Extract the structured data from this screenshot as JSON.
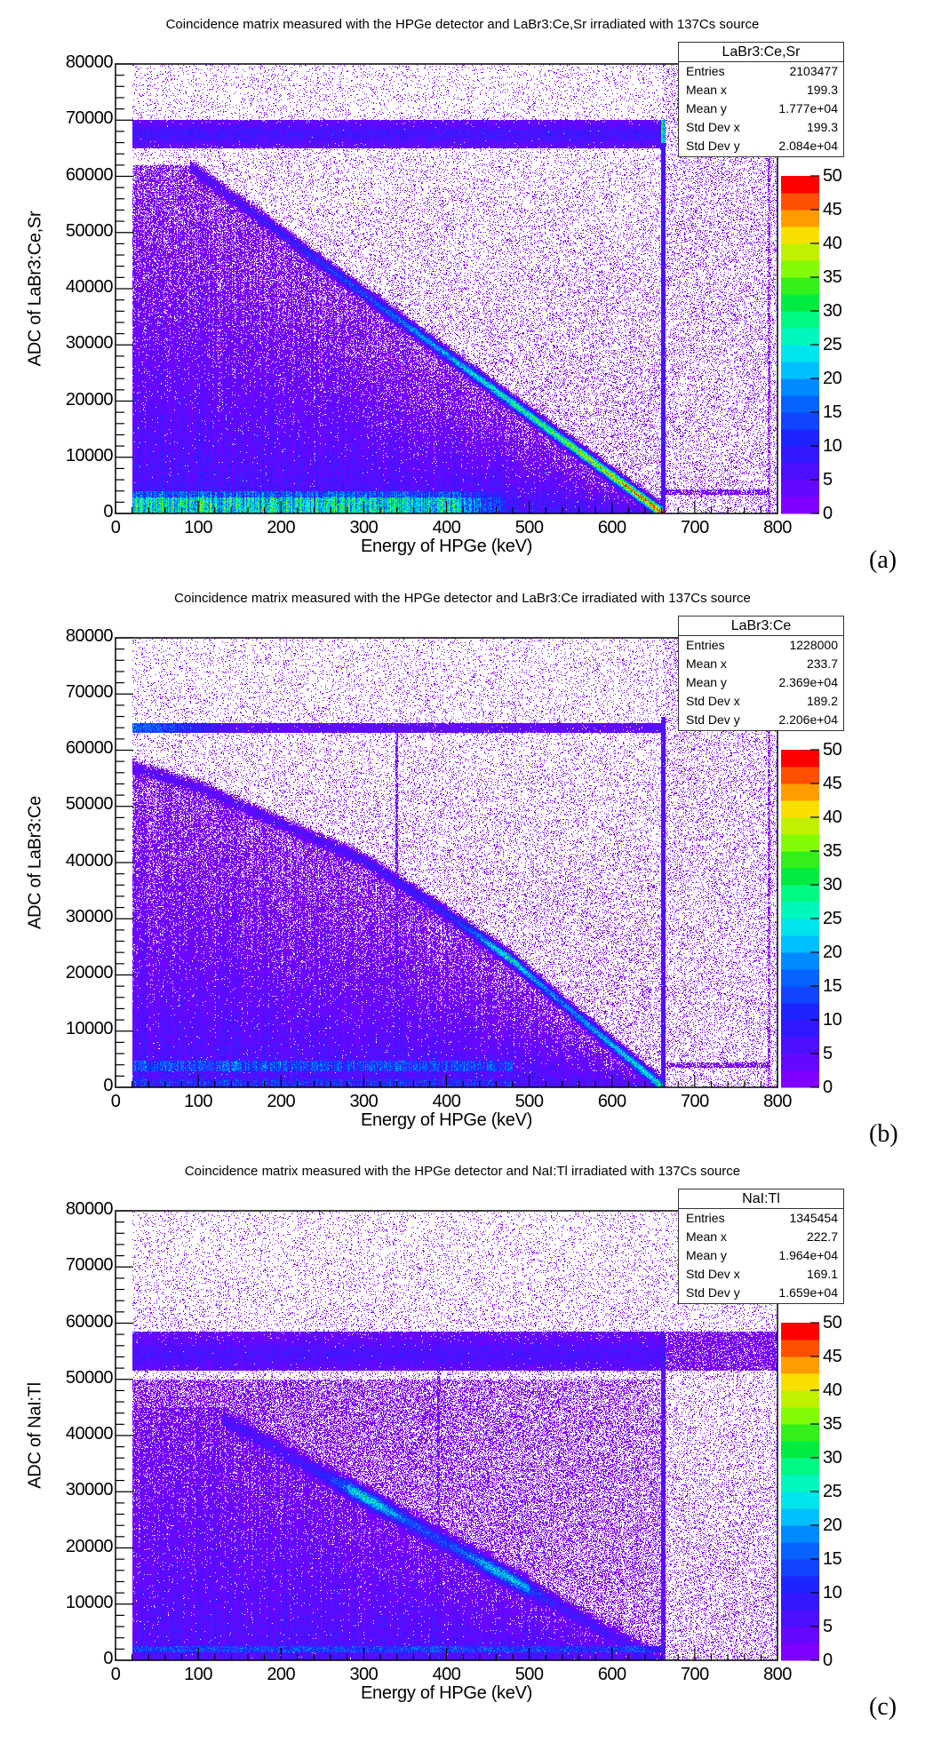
{
  "chart_data": [
    {
      "type": "heatmap",
      "panel_label": "(a)",
      "title": "Coincidence matrix measured with the HPGe detector and LaBr3:Ce,Sr irradiated with 137Cs source",
      "xlabel": "Energy of HPGe (keV)",
      "ylabel": "ADC of LaBr3:Ce,Sr",
      "xlim": [
        0,
        800
      ],
      "ylim": [
        0,
        80000
      ],
      "xticks": [
        "0",
        "100",
        "200",
        "300",
        "400",
        "500",
        "600",
        "700",
        "800"
      ],
      "yticks": [
        "0",
        "10000",
        "20000",
        "30000",
        "40000",
        "50000",
        "60000",
        "70000",
        "80000"
      ],
      "colorbar": {
        "range": [
          0,
          50
        ],
        "ticks": [
          "0",
          "5",
          "10",
          "15",
          "20",
          "25",
          "30",
          "35",
          "40",
          "45",
          "50"
        ]
      },
      "stats": {
        "name": "LaBr3:Ce,Sr",
        "rows": [
          [
            "Entries",
            "2103477"
          ],
          [
            "Mean x",
            "199.3"
          ],
          [
            "Mean y",
            "1.777e+04"
          ],
          [
            "Std Dev x",
            "199.3"
          ],
          [
            "Std Dev y",
            "2.084e+04"
          ]
        ]
      }
    },
    {
      "type": "heatmap",
      "panel_label": "(b)",
      "title": "Coincidence matrix measured with the HPGe detector and LaBr3:Ce irradiated with 137Cs source",
      "xlabel": "Energy of HPGe (keV)",
      "ylabel": "ADC of LaBr3:Ce",
      "xlim": [
        0,
        800
      ],
      "ylim": [
        0,
        80000
      ],
      "xticks": [
        "0",
        "100",
        "200",
        "300",
        "400",
        "500",
        "600",
        "700",
        "800"
      ],
      "yticks": [
        "0",
        "10000",
        "20000",
        "30000",
        "40000",
        "50000",
        "60000",
        "70000",
        "80000"
      ],
      "colorbar": {
        "range": [
          0,
          50
        ],
        "ticks": [
          "0",
          "5",
          "10",
          "15",
          "20",
          "25",
          "30",
          "35",
          "40",
          "45",
          "50"
        ]
      },
      "stats": {
        "name": "LaBr3:Ce",
        "rows": [
          [
            "Entries",
            "1228000"
          ],
          [
            "Mean x",
            "233.7"
          ],
          [
            "Mean y",
            "2.369e+04"
          ],
          [
            "Std Dev x",
            "189.2"
          ],
          [
            "Std Dev y",
            "2.206e+04"
          ]
        ]
      }
    },
    {
      "type": "heatmap",
      "panel_label": "(c)",
      "title": "Coincidence matrix measured with the HPGe detector and NaI:Tl irradiated with 137Cs source",
      "xlabel": "Energy of HPGe (keV)",
      "ylabel": "ADC of NaI:Tl",
      "xlim": [
        0,
        800
      ],
      "ylim": [
        0,
        80000
      ],
      "xticks": [
        "0",
        "100",
        "200",
        "300",
        "400",
        "500",
        "600",
        "700",
        "800"
      ],
      "yticks": [
        "0",
        "10000",
        "20000",
        "30000",
        "40000",
        "50000",
        "60000",
        "70000",
        "80000"
      ],
      "colorbar": {
        "range": [
          0,
          50
        ],
        "ticks": [
          "0",
          "5",
          "10",
          "15",
          "20",
          "25",
          "30",
          "35",
          "40",
          "45",
          "50"
        ]
      },
      "stats": {
        "name": "NaI:Tl",
        "rows": [
          [
            "Entries",
            "1345454"
          ],
          [
            "Mean x",
            "222.7"
          ],
          [
            "Mean y",
            "1.964e+04"
          ],
          [
            "Std Dev x",
            "169.1"
          ],
          [
            "Std Dev y",
            "1.659e+04"
          ]
        ]
      }
    }
  ],
  "palette": [
    "#8000ff",
    "#1e1eff",
    "#0078ff",
    "#00dcff",
    "#00ffaa",
    "#00e628",
    "#96ff00",
    "#ffdc00",
    "#ff7800",
    "#ff0000"
  ]
}
